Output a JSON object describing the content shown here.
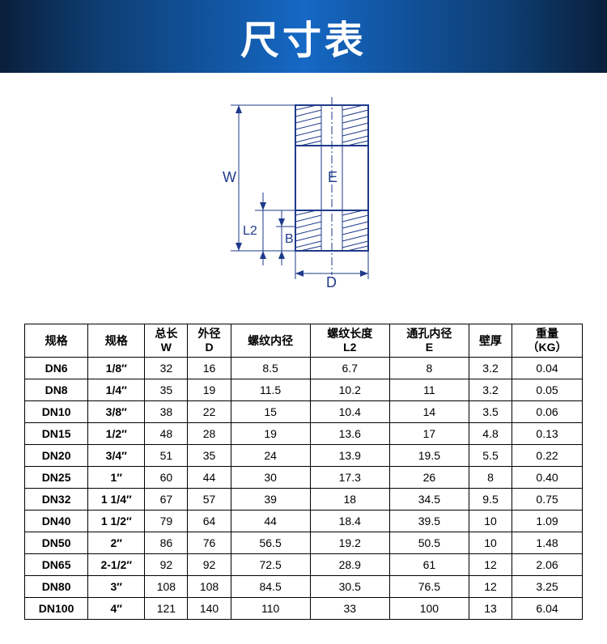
{
  "header": {
    "title": "尺寸表"
  },
  "diagram": {
    "labels": {
      "W": "W",
      "L2": "L2",
      "B": "B",
      "D": "D",
      "E": "E"
    },
    "stroke_color": "#1e3a8a"
  },
  "table": {
    "columns": [
      {
        "top": "规格",
        "bottom": ""
      },
      {
        "top": "规格",
        "bottom": ""
      },
      {
        "top": "总长",
        "bottom": "W"
      },
      {
        "top": "外径",
        "bottom": "D"
      },
      {
        "top": "螺纹内径",
        "bottom": ""
      },
      {
        "top": "螺纹长度",
        "bottom": "L2"
      },
      {
        "top": "通孔内径",
        "bottom": "E"
      },
      {
        "top": "壁厚",
        "bottom": ""
      },
      {
        "top": "重量",
        "bottom": "（KG）"
      }
    ],
    "rows": [
      [
        "DN6",
        "1/8″",
        "32",
        "16",
        "8.5",
        "6.7",
        "8",
        "3.2",
        "0.04"
      ],
      [
        "DN8",
        "1/4″",
        "35",
        "19",
        "11.5",
        "10.2",
        "11",
        "3.2",
        "0.05"
      ],
      [
        "DN10",
        "3/8″",
        "38",
        "22",
        "15",
        "10.4",
        "14",
        "3.5",
        "0.06"
      ],
      [
        "DN15",
        "1/2″",
        "48",
        "28",
        "19",
        "13.6",
        "17",
        "4.8",
        "0.13"
      ],
      [
        "DN20",
        "3/4″",
        "51",
        "35",
        "24",
        "13.9",
        "19.5",
        "5.5",
        "0.22"
      ],
      [
        "DN25",
        "1″",
        "60",
        "44",
        "30",
        "17.3",
        "26",
        "8",
        "0.40"
      ],
      [
        "DN32",
        "1 1/4″",
        "67",
        "57",
        "39",
        "18",
        "34.5",
        "9.5",
        "0.75"
      ],
      [
        "DN40",
        "1 1/2″",
        "79",
        "64",
        "44",
        "18.4",
        "39.5",
        "10",
        "1.09"
      ],
      [
        "DN50",
        "2″",
        "86",
        "76",
        "56.5",
        "19.2",
        "50.5",
        "10",
        "1.48"
      ],
      [
        "DN65",
        "2-1/2″",
        "92",
        "92",
        "72.5",
        "28.9",
        "61",
        "12",
        "2.06"
      ],
      [
        "DN80",
        "3″",
        "108",
        "108",
        "84.5",
        "30.5",
        "76.5",
        "12",
        "3.25"
      ],
      [
        "DN100",
        "4″",
        "121",
        "140",
        "110",
        "33",
        "100",
        "13",
        "6.04"
      ]
    ]
  }
}
